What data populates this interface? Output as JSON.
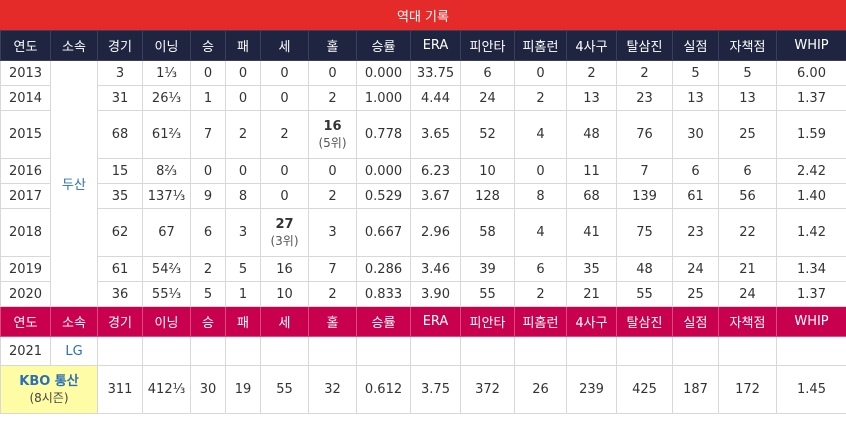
{
  "title": "역대 기록",
  "columns": [
    "연도",
    "소속",
    "경기",
    "이닝",
    "승",
    "패",
    "세",
    "홀",
    "승률",
    "ERA",
    "피안타",
    "피홈런",
    "4사구",
    "탈삼진",
    "실점",
    "자책점",
    "WHIP"
  ],
  "doosan": {
    "team": "두산",
    "rows": [
      {
        "year": "2013",
        "g": "3",
        "ip": "1⅓",
        "w": "0",
        "l": "0",
        "sv": "0",
        "hld": "0",
        "wpct": "0.000",
        "era": "33.75",
        "h": "6",
        "hr": "0",
        "bb": "2",
        "so": "2",
        "r": "5",
        "er": "5",
        "whip": "6.00"
      },
      {
        "year": "2014",
        "g": "31",
        "ip": "26⅓",
        "w": "1",
        "l": "0",
        "sv": "0",
        "hld": "2",
        "wpct": "1.000",
        "era": "4.44",
        "h": "24",
        "hr": "2",
        "bb": "13",
        "so": "23",
        "r": "13",
        "er": "13",
        "whip": "1.37"
      },
      {
        "year": "2015",
        "g": "68",
        "ip": "61⅔",
        "w": "7",
        "l": "2",
        "sv": "2",
        "hld": "16",
        "hld_rank": "(5위)",
        "wpct": "0.778",
        "era": "3.65",
        "h": "52",
        "hr": "4",
        "bb": "48",
        "so": "76",
        "r": "30",
        "er": "25",
        "whip": "1.59"
      },
      {
        "year": "2016",
        "g": "15",
        "ip": "8⅔",
        "w": "0",
        "l": "0",
        "sv": "0",
        "hld": "0",
        "wpct": "0.000",
        "era": "6.23",
        "h": "10",
        "hr": "0",
        "bb": "11",
        "so": "7",
        "r": "6",
        "er": "6",
        "whip": "2.42"
      },
      {
        "year": "2017",
        "g": "35",
        "ip": "137⅓",
        "w": "9",
        "l": "8",
        "sv": "0",
        "hld": "2",
        "wpct": "0.529",
        "era": "3.67",
        "h": "128",
        "hr": "8",
        "bb": "68",
        "so": "139",
        "r": "61",
        "er": "56",
        "whip": "1.40"
      },
      {
        "year": "2018",
        "g": "62",
        "ip": "67",
        "w": "6",
        "l": "3",
        "sv": "27",
        "sv_rank": "(3위)",
        "hld": "3",
        "wpct": "0.667",
        "era": "2.96",
        "h": "58",
        "hr": "4",
        "bb": "41",
        "so": "75",
        "r": "23",
        "er": "22",
        "whip": "1.42"
      },
      {
        "year": "2019",
        "g": "61",
        "ip": "54⅔",
        "w": "2",
        "l": "5",
        "sv": "16",
        "hld": "7",
        "wpct": "0.286",
        "era": "3.46",
        "h": "39",
        "hr": "6",
        "bb": "35",
        "so": "48",
        "r": "24",
        "er": "21",
        "whip": "1.34"
      },
      {
        "year": "2020",
        "g": "36",
        "ip": "55⅓",
        "w": "5",
        "l": "1",
        "sv": "10",
        "hld": "2",
        "wpct": "0.833",
        "era": "3.90",
        "h": "55",
        "hr": "2",
        "bb": "21",
        "so": "55",
        "r": "25",
        "er": "24",
        "whip": "1.37"
      }
    ]
  },
  "lg": {
    "year": "2021",
    "team": "LG"
  },
  "total": {
    "label": "KBO 통산",
    "seasons": "(8시즌)",
    "g": "311",
    "ip": "412⅓",
    "w": "30",
    "l": "19",
    "sv": "55",
    "hld": "32",
    "wpct": "0.612",
    "era": "3.75",
    "h": "372",
    "hr": "26",
    "bb": "239",
    "so": "425",
    "r": "187",
    "er": "172",
    "whip": "1.45"
  }
}
